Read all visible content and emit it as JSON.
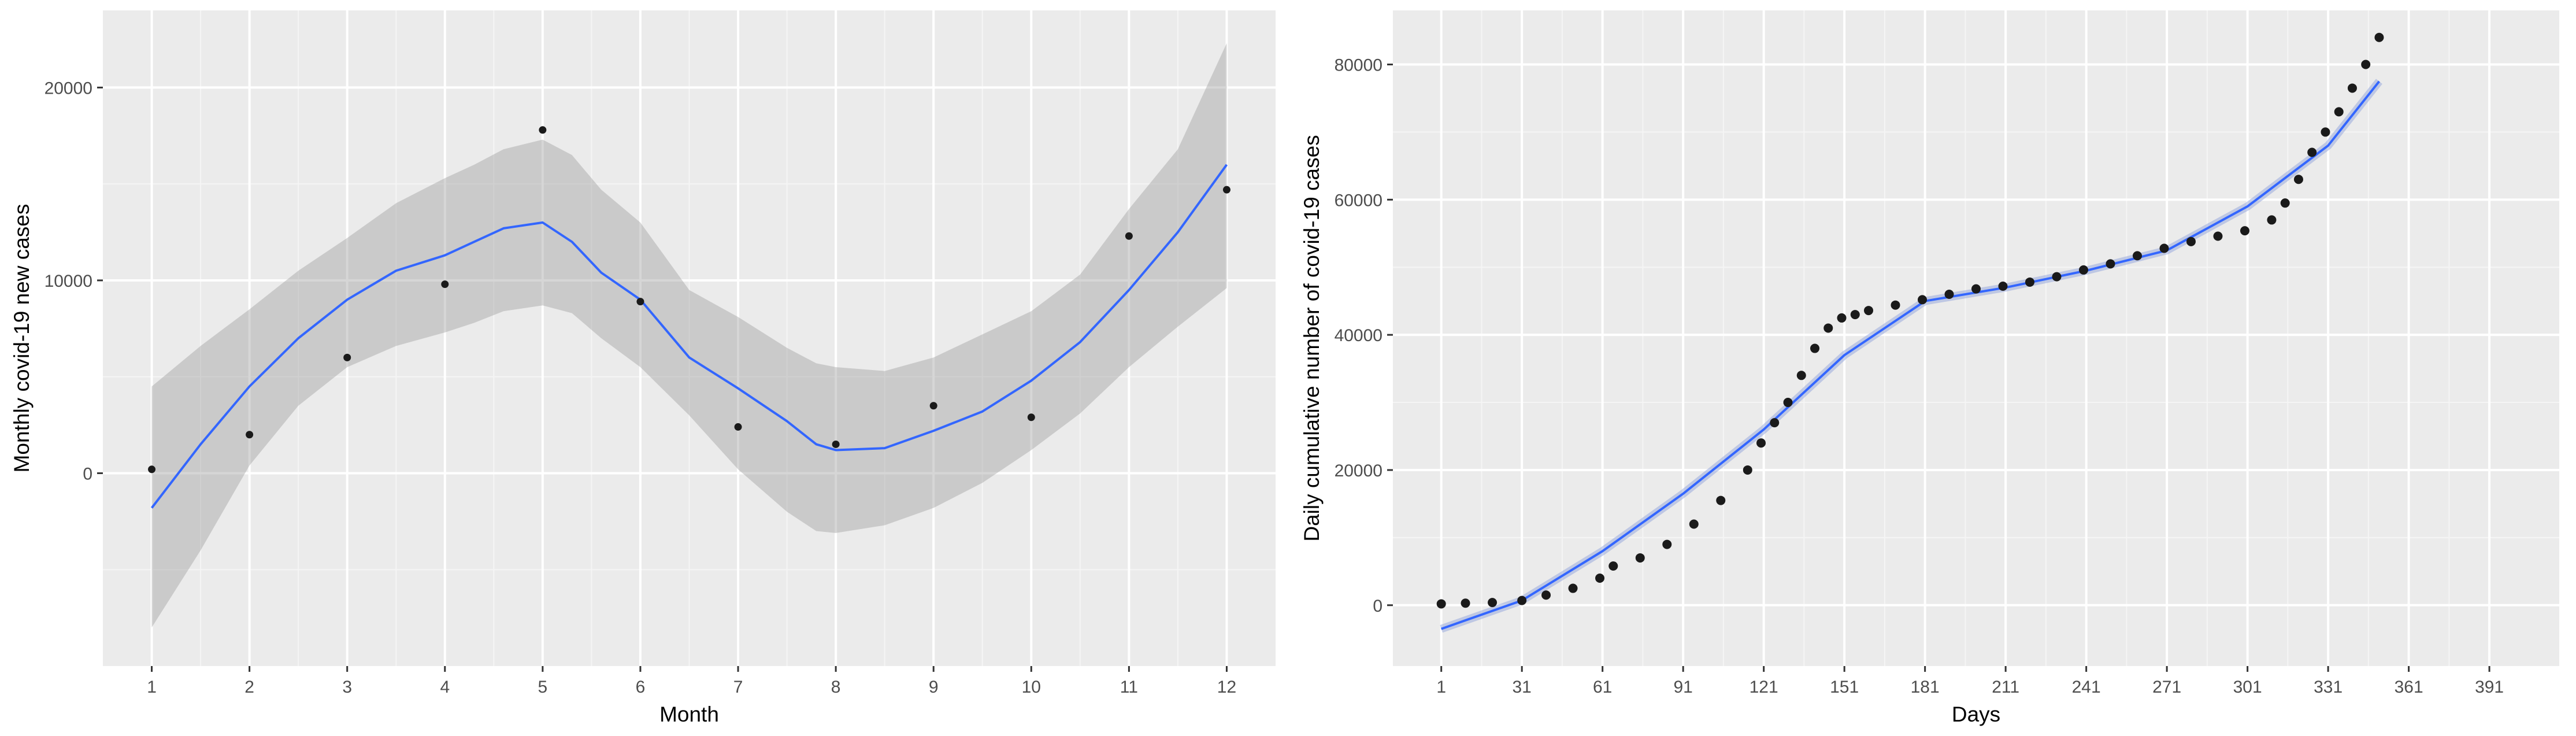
{
  "chart_data": [
    {
      "type": "scatter",
      "title": "",
      "xlabel": "Month",
      "ylabel": "Monthly covid-19 new cases",
      "xlim": [
        0.5,
        12.5
      ],
      "ylim": [
        -10000,
        24000
      ],
      "xticks": [
        1,
        2,
        3,
        4,
        5,
        6,
        7,
        8,
        9,
        10,
        11,
        12
      ],
      "xtick_labels": [
        "1",
        "2",
        "3",
        "4",
        "5",
        "6",
        "7",
        "8",
        "9",
        "10",
        "11",
        "12"
      ],
      "yticks": [
        0,
        10000,
        20000
      ],
      "ytick_labels": [
        "0",
        "10000",
        "20000"
      ],
      "grid": true,
      "legend": "none",
      "series": [
        {
          "type": "points",
          "x": [
            1,
            2,
            3,
            4,
            5,
            6,
            7,
            8,
            9,
            10,
            11,
            12
          ],
          "y": [
            200,
            2000,
            6000,
            9800,
            17800,
            8900,
            2400,
            1500,
            3500,
            2900,
            12300,
            14700
          ]
        },
        {
          "type": "smooth",
          "x": [
            1,
            1.5,
            2,
            2.5,
            3,
            3.5,
            4,
            4.3,
            4.6,
            5,
            5.3,
            5.6,
            6,
            6.5,
            7,
            7.5,
            7.8,
            8,
            8.5,
            9,
            9.5,
            10,
            10.5,
            11,
            11.5,
            12
          ],
          "y": [
            -1800,
            1500,
            4500,
            7000,
            9000,
            10500,
            11300,
            12000,
            12700,
            13000,
            12000,
            10400,
            9000,
            6000,
            4400,
            2700,
            1500,
            1200,
            1300,
            2200,
            3200,
            4800,
            6800,
            9500,
            12500,
            16000
          ],
          "lower": [
            -8000,
            -4000,
            400,
            3500,
            5500,
            6600,
            7300,
            7800,
            8400,
            8700,
            8300,
            7000,
            5500,
            3000,
            200,
            -2000,
            -3000,
            -3100,
            -2700,
            -1800,
            -500,
            1200,
            3100,
            5500,
            7600,
            9600
          ],
          "upper": [
            4500,
            6600,
            8500,
            10500,
            12200,
            14000,
            15300,
            16000,
            16800,
            17300,
            16500,
            14700,
            13000,
            9500,
            8100,
            6500,
            5700,
            5500,
            5300,
            6000,
            7200,
            8400,
            10300,
            13700,
            16800,
            22300
          ],
          "color": "#3366ff"
        }
      ]
    },
    {
      "type": "scatter",
      "title": "",
      "xlabel": "Days",
      "ylabel": "Daily cumulative number of covid-19 cases",
      "xlim": [
        -17,
        417
      ],
      "ylim": [
        -9000,
        88000
      ],
      "xticks": [
        1,
        31,
        61,
        91,
        121,
        151,
        181,
        211,
        241,
        271,
        301,
        331,
        361,
        391
      ],
      "xtick_labels": [
        "1",
        "31",
        "61",
        "91",
        "121",
        "151",
        "181",
        "211",
        "241",
        "271",
        "301",
        "331",
        "361",
        "391"
      ],
      "yticks": [
        0,
        20000,
        40000,
        60000,
        80000
      ],
      "ytick_labels": [
        "0",
        "20000",
        "40000",
        "60000",
        "80000"
      ],
      "grid": true,
      "legend": "none",
      "series": [
        {
          "type": "points",
          "x": [
            1,
            10,
            20,
            31,
            40,
            50,
            60,
            65,
            75,
            85,
            95,
            105,
            115,
            120,
            125,
            130,
            135,
            140,
            145,
            150,
            155,
            160,
            170,
            180,
            190,
            200,
            210,
            220,
            230,
            240,
            250,
            260,
            270,
            280,
            290,
            300,
            310,
            315,
            320,
            325,
            330,
            335,
            340,
            345,
            350
          ],
          "y": [
            200,
            300,
            400,
            700,
            1500,
            2500,
            4000,
            5800,
            7000,
            9000,
            12000,
            15500,
            20000,
            24000,
            27000,
            30000,
            34000,
            38000,
            41000,
            42500,
            43000,
            43600,
            44400,
            45200,
            46000,
            46800,
            47200,
            47800,
            48600,
            49600,
            50500,
            51700,
            52800,
            53800,
            54600,
            55400,
            57000,
            59500,
            63000,
            67000,
            70000,
            73000,
            76500,
            80000,
            84000
          ]
        },
        {
          "type": "smooth",
          "x": [
            1,
            31,
            61,
            91,
            121,
            151,
            181,
            211,
            241,
            271,
            301,
            331,
            350
          ],
          "y": [
            -3500,
            700,
            8000,
            16500,
            26000,
            37000,
            45000,
            47000,
            49500,
            52500,
            59000,
            68000,
            77500
          ],
          "color": "#3366ff"
        }
      ]
    }
  ]
}
